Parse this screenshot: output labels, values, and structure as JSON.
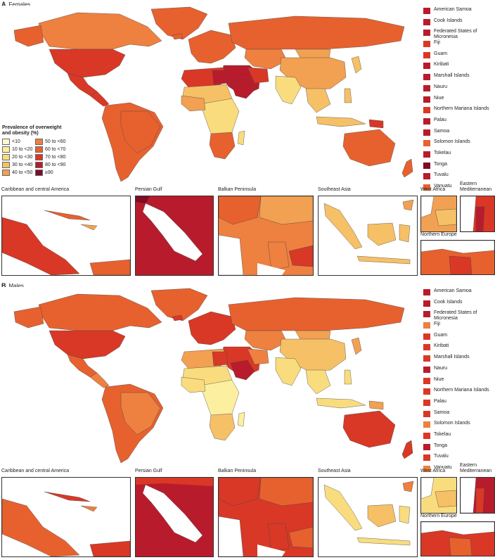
{
  "colors": {
    "lt10": "#fdfbd0",
    "b10_20": "#fcefa0",
    "b20_30": "#f9dc7e",
    "b30_40": "#f6c066",
    "b40_50": "#f2a052",
    "b50_60": "#ee8040",
    "b60_70": "#e7612f",
    "b70_80": "#d93826",
    "b80_90": "#b81c2c",
    "ge90": "#7e0c27"
  },
  "legend": {
    "title": "Prevalence of overweight and obesity (%)",
    "items": [
      {
        "label": "<10",
        "color": "#fdfbd0"
      },
      {
        "label": "50 to <60",
        "color": "#ee8040"
      },
      {
        "label": "10 to <20",
        "color": "#fcefa0"
      },
      {
        "label": "60 to <70",
        "color": "#e7612f"
      },
      {
        "label": "20 to <30",
        "color": "#f9dc7e"
      },
      {
        "label": "70 to <80",
        "color": "#d93826"
      },
      {
        "label": "30 to <40",
        "color": "#f6c066"
      },
      {
        "label": "80 to <90",
        "color": "#b81c2c"
      },
      {
        "label": "40 to <50",
        "color": "#f2a052"
      },
      {
        "label": "≥90",
        "color": "#7e0c27"
      }
    ]
  },
  "panels": [
    {
      "letter": "A",
      "sex": "Females",
      "islands": [
        {
          "name": "American Samoa",
          "color": "#b81c2c"
        },
        {
          "name": "Cook Islands",
          "color": "#b81c2c"
        },
        {
          "name": "Federated States of Micronesia",
          "color": "#b81c2c"
        },
        {
          "name": "Fiji",
          "color": "#d93826"
        },
        {
          "name": "Guam",
          "color": "#d93826"
        },
        {
          "name": "Kiribati",
          "color": "#b81c2c"
        },
        {
          "name": "Marshall Islands",
          "color": "#b81c2c"
        },
        {
          "name": "Nauru",
          "color": "#b81c2c"
        },
        {
          "name": "Niue",
          "color": "#b81c2c"
        },
        {
          "name": "Northern Mariana Islands",
          "color": "#d93826"
        },
        {
          "name": "Palau",
          "color": "#b81c2c"
        },
        {
          "name": "Samoa",
          "color": "#b81c2c"
        },
        {
          "name": "Solomon Islands",
          "color": "#e7612f"
        },
        {
          "name": "Tokelau",
          "color": "#b81c2c"
        },
        {
          "name": "Tonga",
          "color": "#7e0c27"
        },
        {
          "name": "Tuvalu",
          "color": "#b81c2c"
        },
        {
          "name": "Vanuatu",
          "color": "#e7612f"
        }
      ],
      "insets": [
        {
          "title": "Caribbean and central America"
        },
        {
          "title": "Persian Gulf"
        },
        {
          "title": "Balkan Peninsula"
        },
        {
          "title": "Southeast Asia"
        },
        {
          "title": "West Africa"
        },
        {
          "title": "Eastern Mediterranean"
        },
        {
          "title": "Northern Europe"
        }
      ]
    },
    {
      "letter": "B",
      "sex": "Males",
      "islands": [
        {
          "name": "American Samoa",
          "color": "#b81c2c"
        },
        {
          "name": "Cook Islands",
          "color": "#b81c2c"
        },
        {
          "name": "Federated States of Micronesia",
          "color": "#b81c2c"
        },
        {
          "name": "Fiji",
          "color": "#ee8040"
        },
        {
          "name": "Guam",
          "color": "#d93826"
        },
        {
          "name": "Kiribati",
          "color": "#d93826"
        },
        {
          "name": "Marshall Islands",
          "color": "#d93826"
        },
        {
          "name": "Nauru",
          "color": "#b81c2c"
        },
        {
          "name": "Niue",
          "color": "#d93826"
        },
        {
          "name": "Northern Mariana Islands",
          "color": "#d93826"
        },
        {
          "name": "Palau",
          "color": "#d93826"
        },
        {
          "name": "Samoa",
          "color": "#d93826"
        },
        {
          "name": "Solomon Islands",
          "color": "#ee8040"
        },
        {
          "name": "Tokelau",
          "color": "#d93826"
        },
        {
          "name": "Tonga",
          "color": "#b81c2c"
        },
        {
          "name": "Tuvalu",
          "color": "#d93826"
        },
        {
          "name": "Vanuatu",
          "color": "#ee8040"
        }
      ],
      "insets": [
        {
          "title": "Caribbean and central America"
        },
        {
          "title": "Persian Gulf"
        },
        {
          "title": "Balkan Peninsula"
        },
        {
          "title": "Southeast Asia"
        },
        {
          "title": "West Africa"
        },
        {
          "title": "Eastern Mediterranean"
        },
        {
          "title": "Northern Europe"
        }
      ]
    }
  ]
}
